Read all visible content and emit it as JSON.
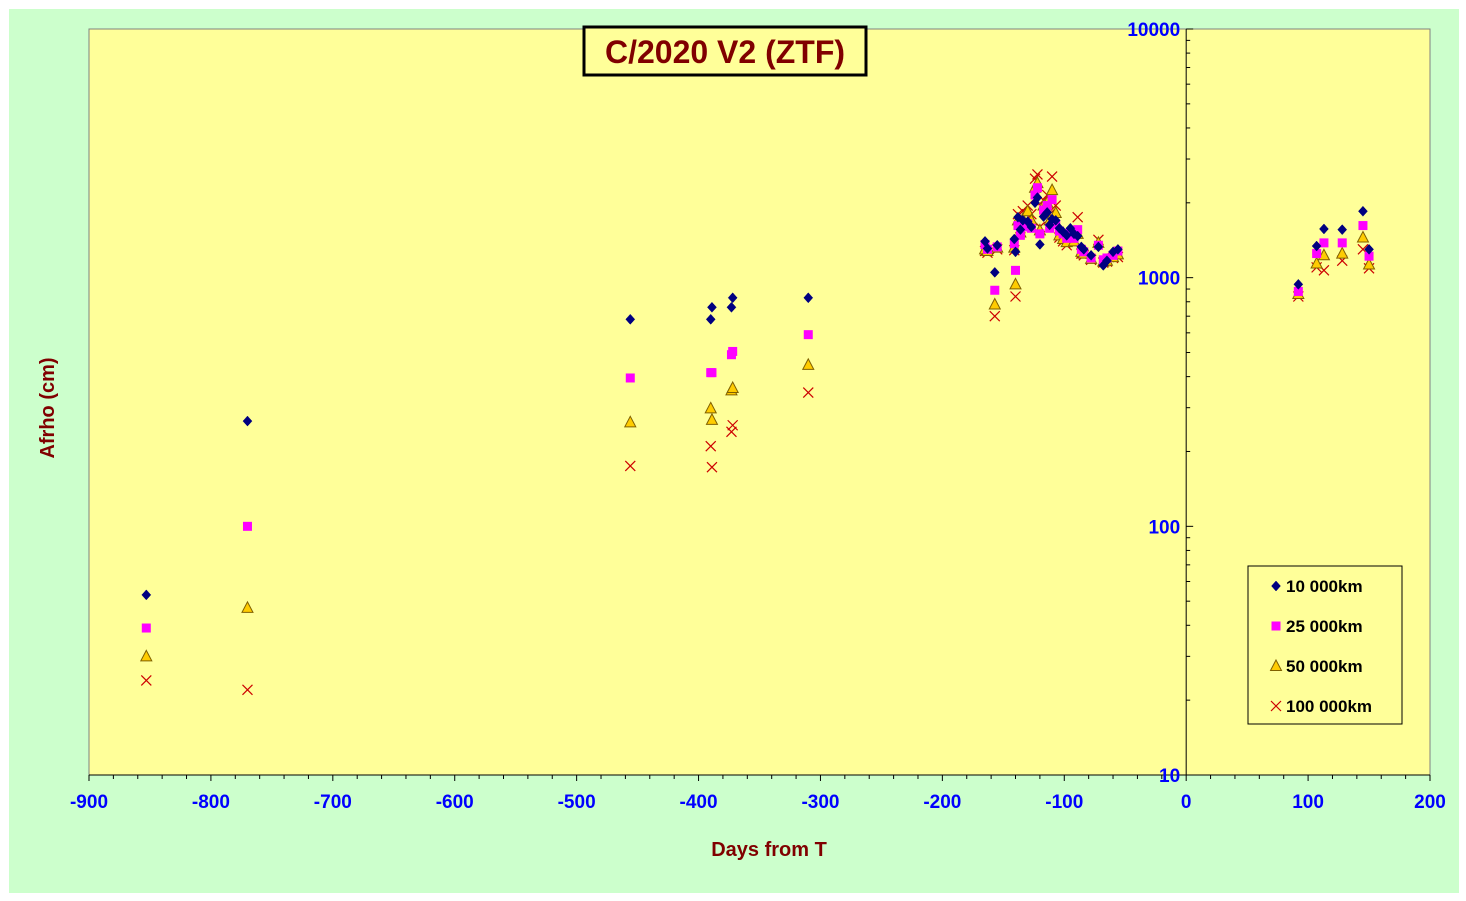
{
  "chart_data": {
    "type": "scatter",
    "title": "C/2020 V2 (ZTF)",
    "xlabel": "Days from T",
    "ylabel": "Afrho (cm)",
    "xlim": [
      -900,
      200
    ],
    "ylim": [
      10,
      10000
    ],
    "yscale": "log",
    "x_ticks": [
      -900,
      -800,
      -700,
      -600,
      -500,
      -400,
      -300,
      -200,
      -100,
      0,
      100,
      200
    ],
    "y_ticks": [
      10,
      100,
      1000,
      10000
    ],
    "grid": false,
    "legend_position": "bottom-right",
    "colors": {
      "outer_background": "#ccffcc",
      "plot_background": "#ffff99",
      "tick_labels": "#0000ff",
      "axis_titles": "#800000",
      "title_box": "#ffff99"
    },
    "series": [
      {
        "name": "10 000km",
        "marker": "diamond",
        "color": "#000080",
        "points": [
          [
            -853,
            53
          ],
          [
            -770,
            265
          ],
          [
            -456,
            680
          ],
          [
            -390,
            680
          ],
          [
            -389,
            760
          ],
          [
            -373,
            760
          ],
          [
            -372,
            830
          ],
          [
            -310,
            830
          ],
          [
            -165,
            1400
          ],
          [
            -163,
            1310
          ],
          [
            -157,
            1050
          ],
          [
            -155,
            1350
          ],
          [
            -141,
            1430
          ],
          [
            -140,
            1270
          ],
          [
            -138,
            1750
          ],
          [
            -136,
            1560
          ],
          [
            -134,
            1700
          ],
          [
            -130,
            1680
          ],
          [
            -127,
            1600
          ],
          [
            -124,
            2000
          ],
          [
            -122,
            2100
          ],
          [
            -120,
            1360
          ],
          [
            -117,
            1760
          ],
          [
            -114,
            1830
          ],
          [
            -112,
            1630
          ],
          [
            -110,
            1720
          ],
          [
            -107,
            1700
          ],
          [
            -104,
            1580
          ],
          [
            -101,
            1530
          ],
          [
            -98,
            1480
          ],
          [
            -95,
            1580
          ],
          [
            -92,
            1500
          ],
          [
            -89,
            1470
          ],
          [
            -86,
            1330
          ],
          [
            -84,
            1300
          ],
          [
            -78,
            1230
          ],
          [
            -72,
            1330
          ],
          [
            -68,
            1120
          ],
          [
            -65,
            1170
          ],
          [
            -60,
            1270
          ],
          [
            -56,
            1300
          ],
          [
            92,
            940
          ],
          [
            107,
            1340
          ],
          [
            113,
            1570
          ],
          [
            128,
            1560
          ],
          [
            145,
            1850
          ],
          [
            150,
            1300
          ]
        ]
      },
      {
        "name": "25 000km",
        "marker": "square",
        "color": "#ff00ff",
        "points": [
          [
            -853,
            39
          ],
          [
            -770,
            100
          ],
          [
            -456,
            395
          ],
          [
            -390,
            415
          ],
          [
            -389,
            415
          ],
          [
            -373,
            490
          ],
          [
            -372,
            505
          ],
          [
            -310,
            590
          ],
          [
            -165,
            1360
          ],
          [
            -163,
            1300
          ],
          [
            -157,
            890
          ],
          [
            -155,
            1330
          ],
          [
            -141,
            1370
          ],
          [
            -140,
            1070
          ],
          [
            -138,
            1620
          ],
          [
            -136,
            1480
          ],
          [
            -134,
            1600
          ],
          [
            -130,
            1650
          ],
          [
            -127,
            1580
          ],
          [
            -124,
            2150
          ],
          [
            -122,
            2300
          ],
          [
            -120,
            1500
          ],
          [
            -117,
            1870
          ],
          [
            -114,
            1950
          ],
          [
            -112,
            1580
          ],
          [
            -110,
            2060
          ],
          [
            -107,
            1640
          ],
          [
            -104,
            1540
          ],
          [
            -101,
            1500
          ],
          [
            -98,
            1440
          ],
          [
            -95,
            1520
          ],
          [
            -92,
            1440
          ],
          [
            -89,
            1560
          ],
          [
            -86,
            1300
          ],
          [
            -84,
            1270
          ],
          [
            -78,
            1200
          ],
          [
            -72,
            1350
          ],
          [
            -68,
            1180
          ],
          [
            -65,
            1200
          ],
          [
            -60,
            1230
          ],
          [
            -56,
            1280
          ],
          [
            92,
            880
          ],
          [
            107,
            1250
          ],
          [
            113,
            1380
          ],
          [
            128,
            1380
          ],
          [
            145,
            1620
          ],
          [
            150,
            1220
          ]
        ]
      },
      {
        "name": "50 000km",
        "marker": "triangle",
        "color": "#ffcc00",
        "points": [
          [
            -853,
            30
          ],
          [
            -770,
            47
          ],
          [
            -456,
            262
          ],
          [
            -390,
            298
          ],
          [
            -389,
            268
          ],
          [
            -373,
            352
          ],
          [
            -372,
            360
          ],
          [
            -310,
            446
          ],
          [
            -165,
            1300
          ],
          [
            -163,
            1280
          ],
          [
            -157,
            780
          ],
          [
            -155,
            1320
          ],
          [
            -141,
            1320
          ],
          [
            -140,
            940
          ],
          [
            -138,
            1700
          ],
          [
            -136,
            1520
          ],
          [
            -134,
            1720
          ],
          [
            -130,
            1850
          ],
          [
            -127,
            1700
          ],
          [
            -124,
            2300
          ],
          [
            -122,
            2400
          ],
          [
            -120,
            1550
          ],
          [
            -117,
            1950
          ],
          [
            -114,
            2000
          ],
          [
            -112,
            1700
          ],
          [
            -110,
            2250
          ],
          [
            -107,
            1820
          ],
          [
            -104,
            1480
          ],
          [
            -101,
            1430
          ],
          [
            -98,
            1390
          ],
          [
            -95,
            1480
          ],
          [
            -92,
            1400
          ],
          [
            -89,
            1500
          ],
          [
            -86,
            1270
          ],
          [
            -84,
            1250
          ],
          [
            -78,
            1190
          ],
          [
            -72,
            1380
          ],
          [
            -68,
            1160
          ],
          [
            -65,
            1170
          ],
          [
            -60,
            1210
          ],
          [
            -56,
            1240
          ],
          [
            92,
            860
          ],
          [
            107,
            1140
          ],
          [
            113,
            1230
          ],
          [
            128,
            1250
          ],
          [
            145,
            1450
          ],
          [
            150,
            1130
          ]
        ]
      },
      {
        "name": "100 000km",
        "marker": "x",
        "color": "#cc0000",
        "points": [
          [
            -853,
            24
          ],
          [
            -770,
            22
          ],
          [
            -456,
            175
          ],
          [
            -390,
            210
          ],
          [
            -389,
            173
          ],
          [
            -373,
            240
          ],
          [
            -372,
            255
          ],
          [
            -310,
            345
          ],
          [
            -165,
            1280
          ],
          [
            -163,
            1260
          ],
          [
            -157,
            700
          ],
          [
            -155,
            1300
          ],
          [
            -141,
            1290
          ],
          [
            -140,
            840
          ],
          [
            -138,
            1800
          ],
          [
            -136,
            1580
          ],
          [
            -134,
            1850
          ],
          [
            -130,
            1950
          ],
          [
            -127,
            1800
          ],
          [
            -124,
            2500
          ],
          [
            -122,
            2600
          ],
          [
            -120,
            1600
          ],
          [
            -117,
            2050
          ],
          [
            -114,
            2150
          ],
          [
            -112,
            1800
          ],
          [
            -110,
            2550
          ],
          [
            -107,
            1950
          ],
          [
            -104,
            1450
          ],
          [
            -101,
            1400
          ],
          [
            -98,
            1350
          ],
          [
            -95,
            1450
          ],
          [
            -92,
            1380
          ],
          [
            -89,
            1750
          ],
          [
            -86,
            1250
          ],
          [
            -84,
            1230
          ],
          [
            -78,
            1180
          ],
          [
            -72,
            1420
          ],
          [
            -68,
            1150
          ],
          [
            -65,
            1160
          ],
          [
            -60,
            1200
          ],
          [
            -56,
            1210
          ],
          [
            92,
            840
          ],
          [
            107,
            1100
          ],
          [
            113,
            1070
          ],
          [
            128,
            1170
          ],
          [
            145,
            1300
          ],
          [
            150,
            1090
          ]
        ]
      }
    ]
  }
}
